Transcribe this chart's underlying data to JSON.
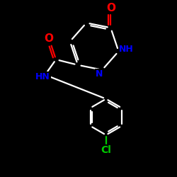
{
  "background_color": "#000000",
  "line_color": "#ffffff",
  "atom_colors": {
    "O": "#ff0000",
    "N": "#0000ff",
    "Cl": "#00cc00",
    "C": "#ffffff",
    "H": "#ffffff"
  },
  "figsize": [
    2.5,
    2.5
  ],
  "dpi": 100
}
